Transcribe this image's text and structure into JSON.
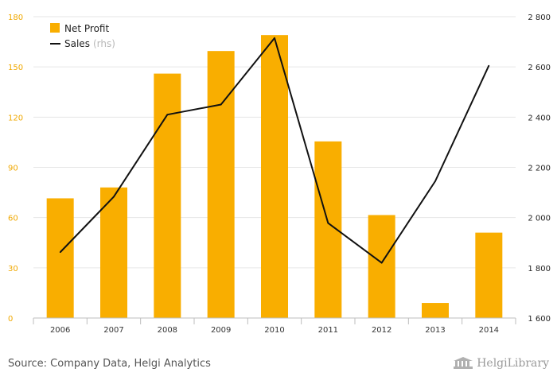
{
  "chart_data": {
    "type": "bar+line",
    "categories": [
      "2006",
      "2007",
      "2008",
      "2009",
      "2010",
      "2011",
      "2012",
      "2013",
      "2014"
    ],
    "series": [
      {
        "name": "Net Profit",
        "type": "bar",
        "axis": "left",
        "color": "#f9ae00",
        "values": [
          71.5,
          78,
          146,
          159.5,
          169,
          105.5,
          61.5,
          9,
          51
        ]
      },
      {
        "name": "Sales",
        "name_note": "(rhs)",
        "type": "line",
        "axis": "right",
        "color": "#111111",
        "values": [
          1862,
          2083,
          2410,
          2450,
          2715,
          1978,
          1820,
          2145,
          2605
        ]
      }
    ],
    "left_axis": {
      "ylim": [
        0,
        180
      ],
      "ticks": [
        "0",
        "30",
        "60",
        "90",
        "120",
        "150",
        "180"
      ],
      "color": "#f0a800"
    },
    "right_axis": {
      "ylim": [
        1600,
        2800
      ],
      "ticks": [
        "1 600",
        "1 800",
        "2 000",
        "2 200",
        "2 400",
        "2 600",
        "2 800"
      ]
    },
    "grid": true,
    "legend_position": "top-left"
  },
  "footer": {
    "source": "Source: Company Data, Helgi Analytics",
    "logo_text": "HelgiLibrary",
    "logo_icon": "library-building-icon"
  }
}
